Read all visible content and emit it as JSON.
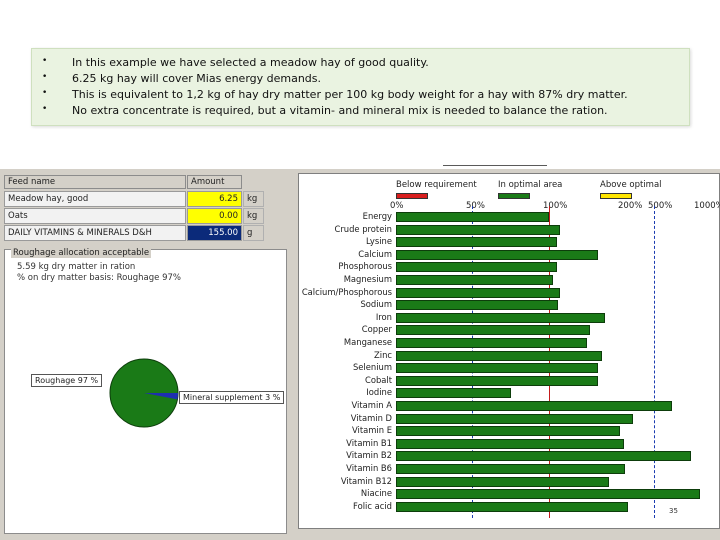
{
  "notes": [
    "In this example we have selected a meadow hay of good quality.",
    "6.25 kg hay will cover Mias energy demands.",
    "This is equivalent to 1,2 kg of hay dry matter per 100 kg body weight for a hay with 87% dry matter.",
    "No extra concentrate is required, but a vitamin- and mineral mix is needed to balance the ration."
  ],
  "bullet": "•",
  "feed_table": {
    "headers": {
      "name": "Feed name",
      "amount": "Amount"
    },
    "rows": [
      {
        "name": "Meadow hay, good",
        "amount": "6.25",
        "unit": "kg"
      },
      {
        "name": "Oats",
        "amount": "0.00",
        "unit": "kg"
      },
      {
        "name": "DAILY VITAMINS & MINERALS D&H",
        "amount": "155.00",
        "unit": "g"
      }
    ]
  },
  "roughage": {
    "title": "Roughage allocation acceptable",
    "line1": "5.59 kg dry matter in ration",
    "line2": "% on dry matter basis: Roughage 97%",
    "pie": [
      {
        "name": "Roughage 97 %",
        "value": 97,
        "color": "#1a7a17"
      },
      {
        "name": "Mineral supplement 3 %",
        "value": 3,
        "color": "#1e2fb0"
      }
    ]
  },
  "requirement_chart": {
    "legend": [
      {
        "label": "Below requirement",
        "color": "#d81e1e"
      },
      {
        "label": "In optimal area",
        "color": "#1a7a17"
      },
      {
        "label": "Above optimal",
        "color": "#ffe600"
      }
    ],
    "ticks": [
      "0%",
      "50%",
      "100%",
      "200%",
      "500%",
      "1000%"
    ],
    "page_number": "35"
  },
  "chart_data": {
    "type": "bar",
    "orientation": "horizontal",
    "axis_ticks": [
      "0%",
      "50%",
      "100%",
      "200%",
      "500%",
      "1000%"
    ],
    "reference_line_percent": 100,
    "categories": [
      "Energy",
      "Crude protein",
      "Lysine",
      "Calcium",
      "Phosphorous",
      "Magnesium",
      "Calcium/Phosphorous",
      "Sodium",
      "Iron",
      "Copper",
      "Manganese",
      "Zinc",
      "Selenium",
      "Cobalt",
      "Iodine",
      "Vitamin A",
      "Vitamin D",
      "Vitamin E",
      "Vitamin B1",
      "Vitamin B2",
      "Vitamin B6",
      "Vitamin B12",
      "Niacine",
      "Folic acid"
    ],
    "values": [
      100,
      115,
      110,
      165,
      110,
      105,
      115,
      112,
      175,
      155,
      150,
      170,
      165,
      165,
      75,
      700,
      290,
      195,
      200,
      900,
      210,
      180,
      1000,
      235
    ]
  }
}
